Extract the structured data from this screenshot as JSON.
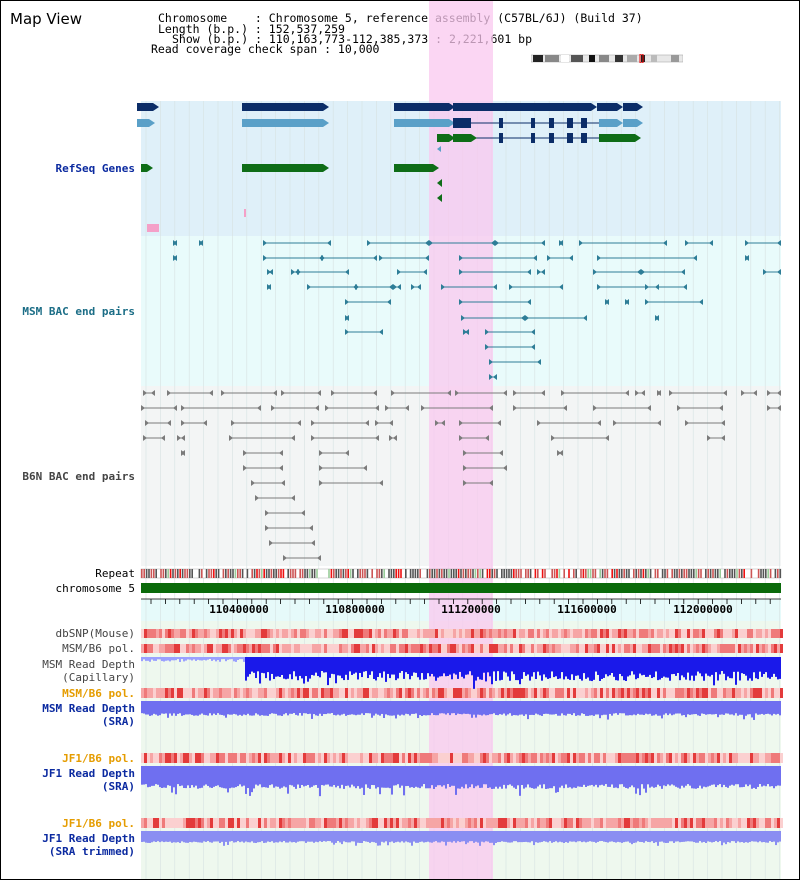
{
  "app": {
    "title": "Map View"
  },
  "info": {
    "chromosome_line": "Chromosome    : Chromosome 5, reference assembly (C57BL/6J) (Build 37)",
    "length_line": "Length (b.p.) : 152,537,259",
    "show_line": "Show (b.p.) : 110,163,773-112,385,373 : 2,221,601 bp",
    "coverage_line": "Read coverage check span : 10,000"
  },
  "tracks": {
    "refseq": "RefSeq Genes",
    "msm_bac": "MSM BAC end pairs",
    "b6n_bac": "B6N BAC end pairs",
    "repeat": "Repeat",
    "chromosome": "chromosome 5",
    "dbsnp": "dbSNP(Mouse)",
    "msm_b6_pol_1": "MSM/B6 pol.",
    "msm_depth_cap_1": "MSM Read Depth",
    "msm_depth_cap_2": "(Capillary)",
    "msm_b6_pol_2": "MSM/B6 pol.",
    "msm_depth_sra_1": "MSM Read Depth",
    "msm_depth_sra_2": "(SRA)",
    "jf1_b6_pol_1": "JF1/B6 pol.",
    "jf1_depth_sra_1": "JF1 Read Depth",
    "jf1_depth_sra_2": "(SRA)",
    "jf1_b6_pol_2": "JF1/B6 pol.",
    "jf1_depth_trim_1": "JF1 Read Depth",
    "jf1_depth_trim_2": "(SRA trimmed)"
  },
  "axis": {
    "ticks": [
      "110400000",
      "110800000",
      "111200000",
      "111600000",
      "112000000"
    ]
  },
  "colors": {
    "refseq_bg": "#dff0f9",
    "msm_bg": "#e9fbfb",
    "b6n_bg": "#f3f5f5",
    "highlight": "#f9c8ef",
    "gene_dark": "#0b2d68",
    "gene_light": "#5aa0c8",
    "gene_green": "#0e6d17",
    "msm_bac": "#2e7d97",
    "b6n_bac": "#7b7b7b",
    "label_blue": "#0b2aa0",
    "label_teal": "#1b6d86",
    "label_orange": "#e59c00",
    "depth_blue": "#1a19ea",
    "depth_mid": "#6f6ff0",
    "depth_light": "#8a8ef2",
    "chrom_green": "#0a6a0a"
  }
}
